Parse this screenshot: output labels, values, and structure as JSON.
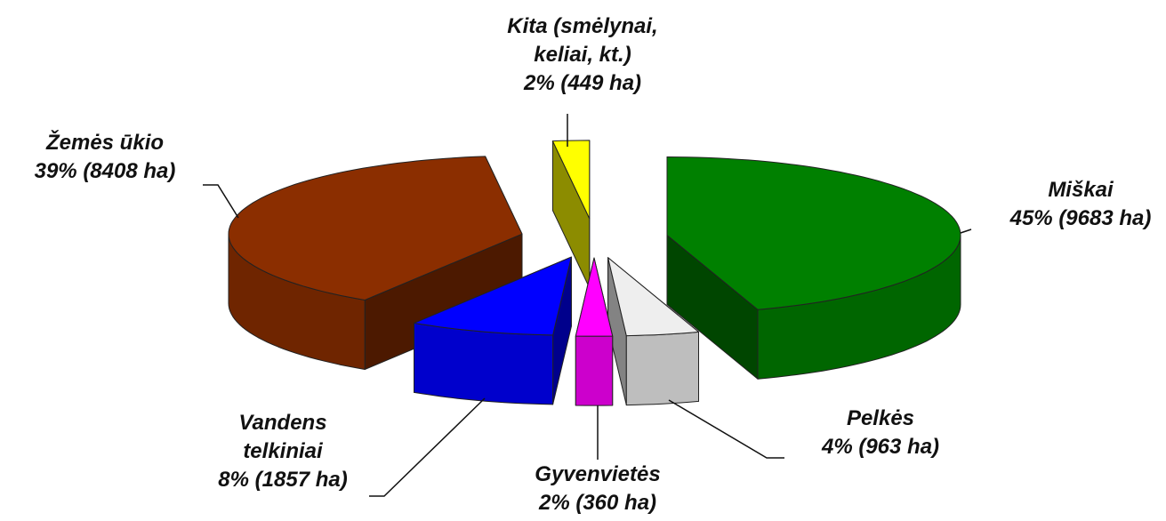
{
  "chart_data": {
    "type": "pie3d",
    "categories": [
      "Miškai",
      "Pelkės",
      "Gyvenvietės",
      "Vandens telkiniai",
      "Žemės ūkio",
      "Kita (smėlynai, keliai, kt.)"
    ],
    "values": [
      45,
      4,
      2,
      8,
      39,
      2
    ],
    "value_labels": [
      "45% (9683 ha)",
      "4% (963 ha)",
      "2% (360 ha)",
      "8% (1857 ha)",
      "39% (8408 ha)",
      "2% (449 ha)"
    ],
    "colors": [
      "#008000",
      "#eeeeee",
      "#ff00ff",
      "#0000ff",
      "#8b2e00",
      "#ffff00"
    ]
  }
}
